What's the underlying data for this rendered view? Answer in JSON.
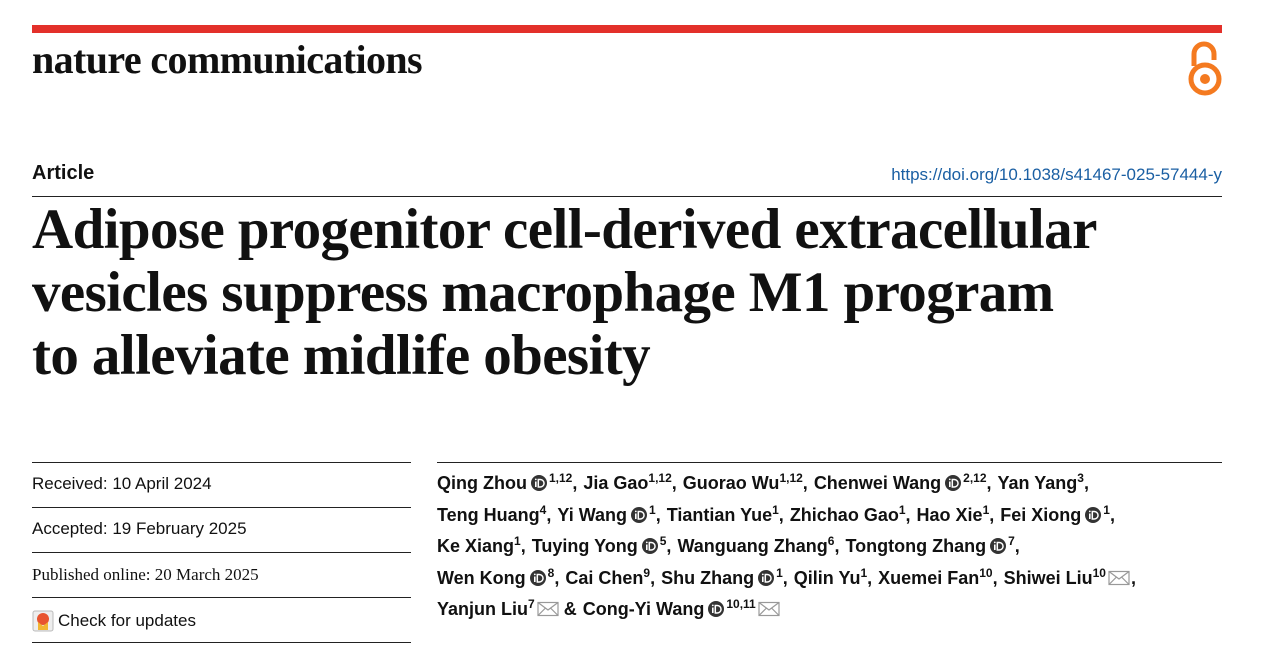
{
  "header": {
    "journal": "nature communications"
  },
  "article": {
    "type": "Article",
    "doi": "https://doi.org/10.1038/s41467-025-57444-y",
    "title_lines": [
      "Adipose progenitor cell-derived extracellular",
      "vesicles suppress macrophage M1 program",
      "to alleviate midlife obesity"
    ]
  },
  "dates": {
    "received": "Received: 10 April 2024",
    "accepted": "Accepted: 19 February 2025",
    "published": "Published online: 20 March 2025",
    "updates": "Check for updates"
  },
  "authors": {
    "lines": [
      [
        {
          "name": "Qing Zhou",
          "orcid": true,
          "aff": "1,12",
          "email": false,
          "joiner": ","
        },
        {
          "name": "Jia Gao",
          "orcid": false,
          "aff": "1,12",
          "email": false,
          "joiner": ","
        },
        {
          "name": "Guorao Wu",
          "orcid": false,
          "aff": "1,12",
          "email": false,
          "joiner": ","
        },
        {
          "name": "Chenwei Wang",
          "orcid": true,
          "aff": "2,12",
          "email": false,
          "joiner": ","
        },
        {
          "name": "Yan Yang",
          "orcid": false,
          "aff": "3",
          "email": false,
          "joiner": ","
        }
      ],
      [
        {
          "name": "Teng Huang",
          "orcid": false,
          "aff": "4",
          "email": false,
          "joiner": ","
        },
        {
          "name": "Yi Wang",
          "orcid": true,
          "aff": "1",
          "email": false,
          "joiner": ","
        },
        {
          "name": "Tiantian Yue",
          "orcid": false,
          "aff": "1",
          "email": false,
          "joiner": ","
        },
        {
          "name": "Zhichao Gao",
          "orcid": false,
          "aff": "1",
          "email": false,
          "joiner": ","
        },
        {
          "name": "Hao Xie",
          "orcid": false,
          "aff": "1",
          "email": false,
          "joiner": ","
        },
        {
          "name": "Fei Xiong",
          "orcid": true,
          "aff": "1",
          "email": false,
          "joiner": ","
        }
      ],
      [
        {
          "name": "Ke Xiang",
          "orcid": false,
          "aff": "1",
          "email": false,
          "joiner": ","
        },
        {
          "name": "Tuying Yong",
          "orcid": true,
          "aff": "5",
          "email": false,
          "joiner": ","
        },
        {
          "name": "Wanguang Zhang",
          "orcid": false,
          "aff": "6",
          "email": false,
          "joiner": ","
        },
        {
          "name": "Tongtong Zhang",
          "orcid": true,
          "aff": "7",
          "email": false,
          "joiner": ","
        }
      ],
      [
        {
          "name": "Wen Kong",
          "orcid": true,
          "aff": "8",
          "email": false,
          "joiner": ","
        },
        {
          "name": "Cai Chen",
          "orcid": false,
          "aff": "9",
          "email": false,
          "joiner": ","
        },
        {
          "name": "Shu Zhang",
          "orcid": true,
          "aff": "1",
          "email": false,
          "joiner": ","
        },
        {
          "name": "Qilin Yu",
          "orcid": false,
          "aff": "1",
          "email": false,
          "joiner": ","
        },
        {
          "name": "Xuemei Fan",
          "orcid": false,
          "aff": "10",
          "email": false,
          "joiner": ","
        },
        {
          "name": "Shiwei Liu",
          "orcid": false,
          "aff": "10",
          "email": true,
          "joiner": ","
        }
      ],
      [
        {
          "name": "Yanjun Liu",
          "orcid": false,
          "aff": "7",
          "email": true,
          "joiner": "&"
        },
        {
          "name": "Cong-Yi Wang",
          "orcid": true,
          "aff": "10,11",
          "email": true
        }
      ]
    ]
  }
}
